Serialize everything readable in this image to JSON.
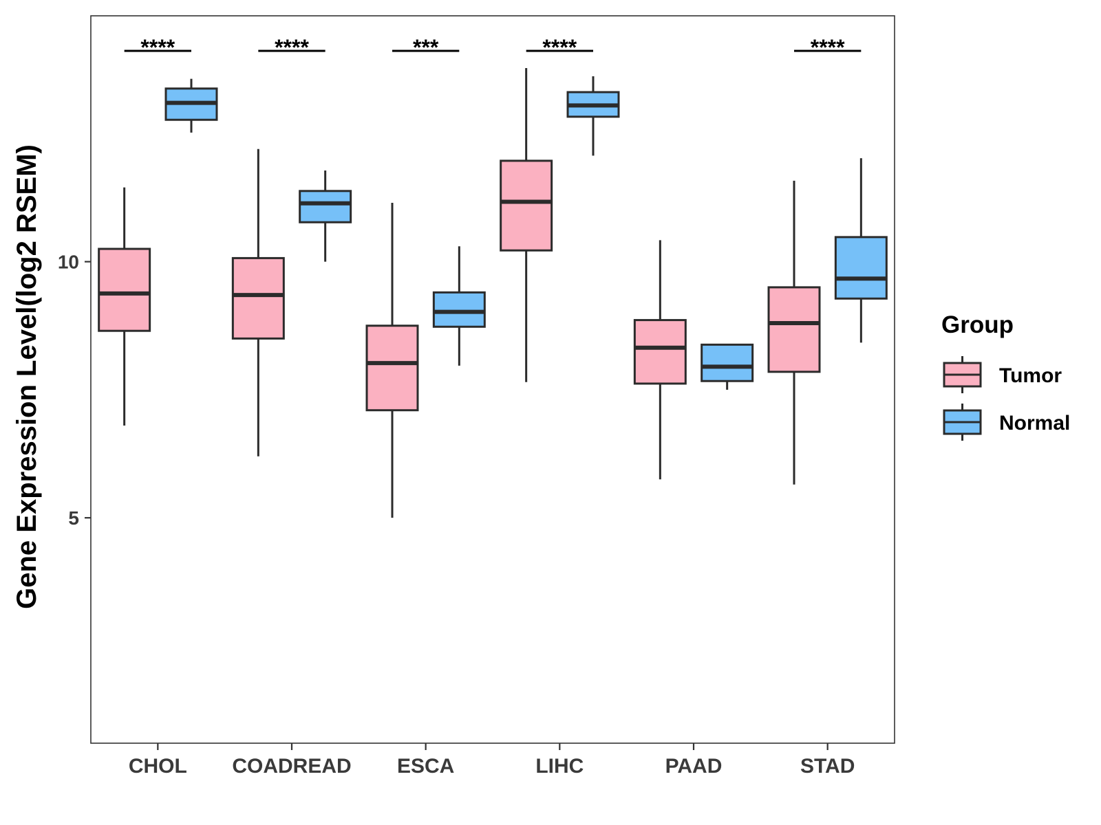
{
  "chart_data": {
    "type": "boxplot",
    "title": "",
    "xlabel": "",
    "ylabel": "Gene Expression Level(log2 RSEM)",
    "ylim": [
      0.6,
      14.8
    ],
    "yticks": [
      5,
      10
    ],
    "categories": [
      "CHOL",
      "COADREAD",
      "ESCA",
      "LIHC",
      "PAAD",
      "STAD"
    ],
    "series": [
      {
        "name": "Tumor",
        "color": "#fbb1c1",
        "boxes": [
          {
            "min": 6.8,
            "q1": 8.65,
            "median": 9.38,
            "q3": 10.25,
            "max": 11.45
          },
          {
            "min": 6.2,
            "q1": 8.5,
            "median": 9.35,
            "q3": 10.07,
            "max": 12.2
          },
          {
            "min": 5.0,
            "q1": 7.1,
            "median": 8.02,
            "q3": 8.75,
            "max": 11.15
          },
          {
            "min": 7.65,
            "q1": 10.22,
            "median": 11.17,
            "q3": 11.97,
            "max": 13.78
          },
          {
            "min": 5.75,
            "q1": 7.62,
            "median": 8.32,
            "q3": 8.86,
            "max": 10.42
          },
          {
            "min": 5.65,
            "q1": 7.85,
            "median": 8.8,
            "q3": 9.5,
            "max": 11.58
          }
        ]
      },
      {
        "name": "Normal",
        "color": "#76c0f8",
        "boxes": [
          {
            "min": 12.52,
            "q1": 12.77,
            "median": 13.1,
            "q3": 13.38,
            "max": 13.57
          },
          {
            "min": 10.0,
            "q1": 10.77,
            "median": 11.14,
            "q3": 11.38,
            "max": 11.78
          },
          {
            "min": 7.97,
            "q1": 8.73,
            "median": 9.02,
            "q3": 9.4,
            "max": 10.3
          },
          {
            "min": 12.07,
            "q1": 12.83,
            "median": 13.05,
            "q3": 13.31,
            "max": 13.62
          },
          {
            "min": 7.5,
            "q1": 7.67,
            "median": 7.95,
            "q3": 8.38,
            "max": 8.38
          },
          {
            "min": 8.42,
            "q1": 9.28,
            "median": 9.67,
            "q3": 10.48,
            "max": 12.02
          }
        ]
      }
    ],
    "significance": [
      "****",
      "****",
      "***",
      "****",
      "",
      "****"
    ],
    "legend": {
      "title": "Group",
      "entries": [
        "Tumor",
        "Normal"
      ],
      "position": "right"
    },
    "grid": false
  }
}
